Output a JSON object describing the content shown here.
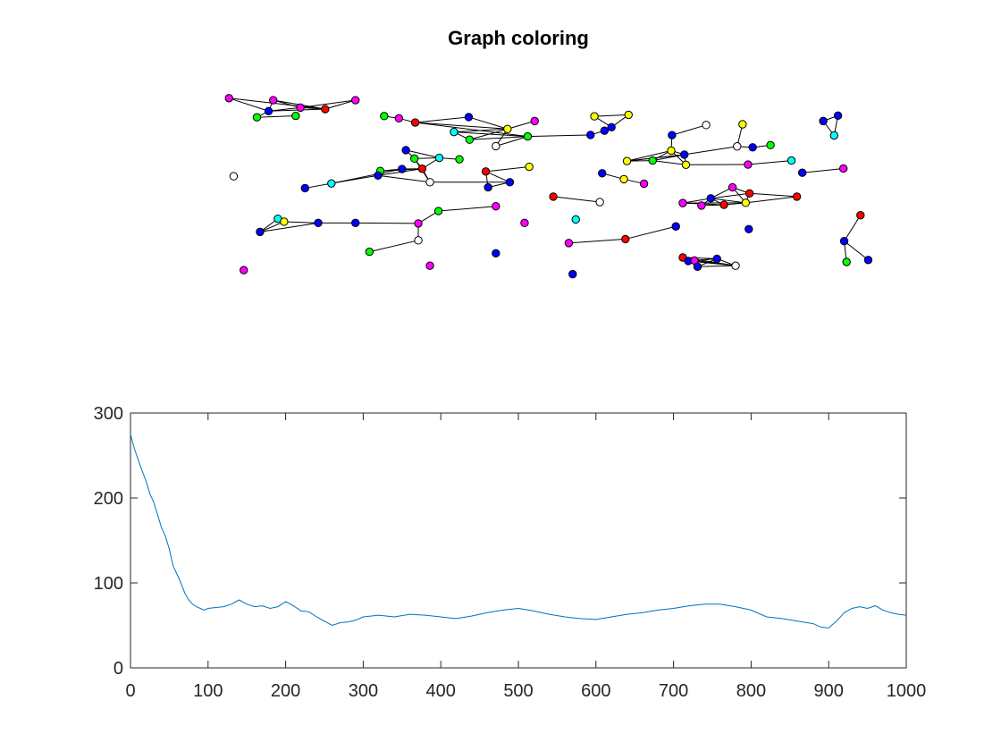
{
  "graph": {
    "title": "Graph coloring",
    "nodes": [
      [
        "n1",
        0.178,
        0.812,
        "#0000ff"
      ],
      [
        "n2",
        0.163,
        0.787,
        "#00ff00"
      ],
      [
        "n3",
        0.213,
        0.793,
        "#00ff00"
      ],
      [
        "n4",
        0.127,
        0.864,
        "#ff00ff"
      ],
      [
        "n5",
        0.184,
        0.856,
        "#ff00ff"
      ],
      [
        "n6",
        0.219,
        0.826,
        "#ff00ff"
      ],
      [
        "n7",
        0.251,
        0.82,
        "#ff0000"
      ],
      [
        "n8",
        0.29,
        0.856,
        "#ff00ff"
      ],
      [
        "n9",
        0.327,
        0.792,
        "#00ff00"
      ],
      [
        "n10",
        0.346,
        0.783,
        "#ff00ff"
      ],
      [
        "n11",
        0.367,
        0.766,
        "#ff0000"
      ],
      [
        "n12",
        0.436,
        0.788,
        "#0000ff"
      ],
      [
        "n13",
        0.521,
        0.772,
        "#ff00ff"
      ],
      [
        "n14",
        0.417,
        0.728,
        "#00ffff"
      ],
      [
        "n15",
        0.437,
        0.697,
        "#00ff00"
      ],
      [
        "n16",
        0.486,
        0.74,
        "#ffff00"
      ],
      [
        "n17",
        0.512,
        0.71,
        "#00ff00"
      ],
      [
        "n18",
        0.471,
        0.671,
        "#ffffff"
      ],
      [
        "n19",
        0.598,
        0.791,
        "#ffff00"
      ],
      [
        "n20",
        0.642,
        0.797,
        "#ffff00"
      ],
      [
        "n21",
        0.62,
        0.747,
        "#0000ff"
      ],
      [
        "n22",
        0.611,
        0.733,
        "#0000ff"
      ],
      [
        "n23",
        0.593,
        0.716,
        "#0000ff"
      ],
      [
        "n24",
        0.355,
        0.655,
        "#0000ff"
      ],
      [
        "n25",
        0.366,
        0.621,
        "#00ff00"
      ],
      [
        "n26",
        0.398,
        0.624,
        "#00ffff"
      ],
      [
        "n27",
        0.424,
        0.618,
        "#00ff00"
      ],
      [
        "n28",
        0.35,
        0.579,
        "#0000ff"
      ],
      [
        "n29",
        0.376,
        0.58,
        "#ff0000"
      ],
      [
        "n30",
        0.322,
        0.571,
        "#00ff00"
      ],
      [
        "n31",
        0.319,
        0.553,
        "#0000ff"
      ],
      [
        "n32",
        0.386,
        0.526,
        "#ffffff"
      ],
      [
        "n33",
        0.259,
        0.521,
        "#00ffff"
      ],
      [
        "n34",
        0.225,
        0.502,
        "#0000ff"
      ],
      [
        "n35",
        0.133,
        0.55,
        "#ffffff"
      ],
      [
        "n36",
        0.458,
        0.569,
        "#ff0000"
      ],
      [
        "n37",
        0.514,
        0.588,
        "#ffff00"
      ],
      [
        "n38",
        0.489,
        0.526,
        "#0000ff"
      ],
      [
        "n39",
        0.461,
        0.505,
        "#0000ff"
      ],
      [
        "n40",
        0.698,
        0.715,
        "#0000ff"
      ],
      [
        "n41",
        0.742,
        0.756,
        "#ffffff"
      ],
      [
        "n42",
        0.789,
        0.759,
        "#ffff00"
      ],
      [
        "n43",
        0.782,
        0.67,
        "#ffffff"
      ],
      [
        "n44",
        0.802,
        0.666,
        "#0000ff"
      ],
      [
        "n45",
        0.825,
        0.675,
        "#00ff00"
      ],
      [
        "n46",
        0.697,
        0.653,
        "#ffff00"
      ],
      [
        "n47",
        0.714,
        0.637,
        "#0000ff"
      ],
      [
        "n48",
        0.64,
        0.611,
        "#ffff00"
      ],
      [
        "n49",
        0.673,
        0.613,
        "#00ff00"
      ],
      [
        "n50",
        0.716,
        0.596,
        "#ffff00"
      ],
      [
        "n51",
        0.796,
        0.597,
        "#ff00ff"
      ],
      [
        "n52",
        0.852,
        0.613,
        "#00ffff"
      ],
      [
        "n53",
        0.893,
        0.772,
        "#0000ff"
      ],
      [
        "n54",
        0.912,
        0.794,
        "#0000ff"
      ],
      [
        "n55",
        0.907,
        0.714,
        "#00ffff"
      ],
      [
        "n56",
        0.866,
        0.564,
        "#0000ff"
      ],
      [
        "n57",
        0.919,
        0.581,
        "#ff00ff"
      ],
      [
        "n58",
        0.608,
        0.562,
        "#0000ff"
      ],
      [
        "n59",
        0.636,
        0.538,
        "#ffff00"
      ],
      [
        "n60",
        0.662,
        0.52,
        "#ff00ff"
      ],
      [
        "n61",
        0.545,
        0.468,
        "#ff0000"
      ],
      [
        "n62",
        0.605,
        0.446,
        "#ffffff"
      ],
      [
        "n63",
        0.776,
        0.505,
        "#ff00ff"
      ],
      [
        "n64",
        0.798,
        0.481,
        "#ff0000"
      ],
      [
        "n65",
        0.748,
        0.461,
        "#0000ff"
      ],
      [
        "n66",
        0.859,
        0.468,
        "#ff0000"
      ],
      [
        "n67",
        0.712,
        0.442,
        "#ff00ff"
      ],
      [
        "n68",
        0.736,
        0.432,
        "#ff00ff"
      ],
      [
        "n69",
        0.765,
        0.435,
        "#ff0000"
      ],
      [
        "n70",
        0.793,
        0.443,
        "#ffff00"
      ],
      [
        "n71",
        0.19,
        0.379,
        "#00ffff"
      ],
      [
        "n72",
        0.198,
        0.367,
        "#ffff00"
      ],
      [
        "n73",
        0.167,
        0.326,
        "#0000ff"
      ],
      [
        "n74",
        0.242,
        0.362,
        "#0000ff"
      ],
      [
        "n75",
        0.29,
        0.362,
        "#0000ff"
      ],
      [
        "n76",
        0.371,
        0.36,
        "#ff00ff"
      ],
      [
        "n77",
        0.397,
        0.41,
        "#00ff00"
      ],
      [
        "n78",
        0.471,
        0.429,
        "#ff00ff"
      ],
      [
        "n79",
        0.371,
        0.292,
        "#ffffff"
      ],
      [
        "n80",
        0.308,
        0.246,
        "#00ff00"
      ],
      [
        "n81",
        0.146,
        0.172,
        "#ff00ff"
      ],
      [
        "n82",
        0.386,
        0.19,
        "#ff00ff"
      ],
      [
        "n83",
        0.471,
        0.24,
        "#0000ff"
      ],
      [
        "n84",
        0.508,
        0.362,
        "#ff00ff"
      ],
      [
        "n85",
        0.574,
        0.376,
        "#00ffff"
      ],
      [
        "n86",
        0.565,
        0.281,
        "#ff00ff"
      ],
      [
        "n87",
        0.638,
        0.297,
        "#ff0000"
      ],
      [
        "n88",
        0.703,
        0.348,
        "#0000ff"
      ],
      [
        "n89",
        0.57,
        0.156,
        "#0000ff"
      ],
      [
        "n90",
        0.797,
        0.337,
        "#0000ff"
      ],
      [
        "n91",
        0.941,
        0.393,
        "#ff0000"
      ],
      [
        "n92",
        0.92,
        0.289,
        "#0000ff"
      ],
      [
        "n93",
        0.923,
        0.205,
        "#00ff00"
      ],
      [
        "n94",
        0.951,
        0.213,
        "#0000ff"
      ],
      [
        "n95",
        0.712,
        0.223,
        "#ff0000"
      ],
      [
        "n96",
        0.719,
        0.209,
        "#0000ff"
      ],
      [
        "n97",
        0.727,
        0.211,
        "#ff00ff"
      ],
      [
        "n98",
        0.731,
        0.186,
        "#0000ff"
      ],
      [
        "n99",
        0.756,
        0.218,
        "#0000ff"
      ],
      [
        "n100",
        0.78,
        0.19,
        "#ffffff"
      ]
    ],
    "edges": [
      [
        "n1",
        "n2"
      ],
      [
        "n2",
        "n3"
      ],
      [
        "n1",
        "n4"
      ],
      [
        "n1",
        "n5"
      ],
      [
        "n1",
        "n6"
      ],
      [
        "n1",
        "n7"
      ],
      [
        "n4",
        "n7"
      ],
      [
        "n5",
        "n7"
      ],
      [
        "n6",
        "n7"
      ],
      [
        "n5",
        "n6"
      ],
      [
        "n6",
        "n8"
      ],
      [
        "n7",
        "n8"
      ],
      [
        "n9",
        "n10"
      ],
      [
        "n10",
        "n11"
      ],
      [
        "n11",
        "n12"
      ],
      [
        "n11",
        "n16"
      ],
      [
        "n11",
        "n17"
      ],
      [
        "n12",
        "n16"
      ],
      [
        "n13",
        "n16"
      ],
      [
        "n14",
        "n16"
      ],
      [
        "n14",
        "n17"
      ],
      [
        "n15",
        "n16"
      ],
      [
        "n15",
        "n17"
      ],
      [
        "n16",
        "n18"
      ],
      [
        "n17",
        "n18"
      ],
      [
        "n15",
        "n14"
      ],
      [
        "n17",
        "n23"
      ],
      [
        "n23",
        "n22"
      ],
      [
        "n22",
        "n21"
      ],
      [
        "n21",
        "n20"
      ],
      [
        "n19",
        "n20"
      ],
      [
        "n19",
        "n21"
      ],
      [
        "n24",
        "n25"
      ],
      [
        "n24",
        "n26"
      ],
      [
        "n25",
        "n26"
      ],
      [
        "n26",
        "n27"
      ],
      [
        "n25",
        "n29"
      ],
      [
        "n26",
        "n29"
      ],
      [
        "n25",
        "n32"
      ],
      [
        "n29",
        "n28"
      ],
      [
        "n29",
        "n30"
      ],
      [
        "n29",
        "n31"
      ],
      [
        "n28",
        "n30"
      ],
      [
        "n30",
        "n31"
      ],
      [
        "n31",
        "n32"
      ],
      [
        "n29",
        "n32"
      ],
      [
        "n28",
        "n33"
      ],
      [
        "n31",
        "n33"
      ],
      [
        "n33",
        "n34"
      ],
      [
        "n32",
        "n38"
      ],
      [
        "n36",
        "n38"
      ],
      [
        "n36",
        "n39"
      ],
      [
        "n38",
        "n39"
      ],
      [
        "n36",
        "n37"
      ],
      [
        "n40",
        "n41"
      ],
      [
        "n42",
        "n43"
      ],
      [
        "n43",
        "n44"
      ],
      [
        "n44",
        "n45"
      ],
      [
        "n40",
        "n46"
      ],
      [
        "n46",
        "n47"
      ],
      [
        "n46",
        "n48"
      ],
      [
        "n46",
        "n49"
      ],
      [
        "n46",
        "n50"
      ],
      [
        "n47",
        "n48"
      ],
      [
        "n47",
        "n49"
      ],
      [
        "n47",
        "n50"
      ],
      [
        "n48",
        "n49"
      ],
      [
        "n48",
        "n47"
      ],
      [
        "n49",
        "n50"
      ],
      [
        "n50",
        "n51"
      ],
      [
        "n51",
        "n52"
      ],
      [
        "n47",
        "n43"
      ],
      [
        "n53",
        "n54"
      ],
      [
        "n53",
        "n55"
      ],
      [
        "n54",
        "n55"
      ],
      [
        "n56",
        "n57"
      ],
      [
        "n58",
        "n59"
      ],
      [
        "n59",
        "n60"
      ],
      [
        "n61",
        "n62"
      ],
      [
        "n63",
        "n64"
      ],
      [
        "n63",
        "n65"
      ],
      [
        "n63",
        "n70"
      ],
      [
        "n64",
        "n65"
      ],
      [
        "n64",
        "n66"
      ],
      [
        "n64",
        "n70"
      ],
      [
        "n65",
        "n67"
      ],
      [
        "n65",
        "n68"
      ],
      [
        "n65",
        "n69"
      ],
      [
        "n65",
        "n70"
      ],
      [
        "n66",
        "n70"
      ],
      [
        "n67",
        "n69"
      ],
      [
        "n68",
        "n69"
      ],
      [
        "n69",
        "n70"
      ],
      [
        "n67",
        "n70"
      ],
      [
        "n71",
        "n72"
      ],
      [
        "n71",
        "n73"
      ],
      [
        "n72",
        "n73"
      ],
      [
        "n73",
        "n74"
      ],
      [
        "n72",
        "n74"
      ],
      [
        "n74",
        "n75"
      ],
      [
        "n75",
        "n76"
      ],
      [
        "n76",
        "n77"
      ],
      [
        "n77",
        "n78"
      ],
      [
        "n76",
        "n79"
      ],
      [
        "n79",
        "n80"
      ],
      [
        "n86",
        "n87"
      ],
      [
        "n87",
        "n88"
      ],
      [
        "n91",
        "n92"
      ],
      [
        "n92",
        "n93"
      ],
      [
        "n92",
        "n94"
      ],
      [
        "n95",
        "n96"
      ],
      [
        "n95",
        "n97"
      ],
      [
        "n95",
        "n98"
      ],
      [
        "n95",
        "n99"
      ],
      [
        "n95",
        "n100"
      ],
      [
        "n96",
        "n97"
      ],
      [
        "n96",
        "n98"
      ],
      [
        "n96",
        "n99"
      ],
      [
        "n96",
        "n100"
      ],
      [
        "n97",
        "n98"
      ],
      [
        "n97",
        "n99"
      ],
      [
        "n97",
        "n100"
      ],
      [
        "n98",
        "n99"
      ],
      [
        "n98",
        "n100"
      ],
      [
        "n99",
        "n100"
      ]
    ]
  },
  "chart_data": {
    "type": "line",
    "title": "",
    "xlabel": "",
    "ylabel": "",
    "xlim": [
      0,
      1000
    ],
    "ylim": [
      0,
      300
    ],
    "xticks": [
      0,
      100,
      200,
      300,
      400,
      500,
      600,
      700,
      800,
      900,
      1000
    ],
    "yticks": [
      0,
      100,
      200,
      300
    ],
    "grid": false,
    "series": [
      {
        "color": "#0072bd",
        "x": [
          0,
          5,
          10,
          15,
          20,
          25,
          30,
          35,
          40,
          45,
          50,
          55,
          60,
          65,
          70,
          75,
          80,
          85,
          90,
          95,
          100,
          110,
          120,
          130,
          140,
          150,
          160,
          170,
          180,
          190,
          200,
          210,
          220,
          230,
          240,
          250,
          260,
          270,
          280,
          290,
          300,
          320,
          340,
          360,
          380,
          400,
          420,
          440,
          460,
          480,
          500,
          520,
          540,
          560,
          580,
          600,
          620,
          640,
          660,
          680,
          700,
          720,
          740,
          760,
          780,
          800,
          820,
          840,
          860,
          880,
          890,
          900,
          910,
          920,
          930,
          940,
          950,
          960,
          970,
          980,
          990,
          1000
        ],
        "y": [
          275,
          258,
          245,
          232,
          220,
          205,
          195,
          180,
          165,
          155,
          140,
          120,
          110,
          100,
          88,
          80,
          75,
          72,
          70,
          68,
          70,
          71,
          72,
          75,
          80,
          75,
          72,
          73,
          70,
          72,
          78,
          73,
          67,
          66,
          60,
          55,
          50,
          53,
          54,
          56,
          60,
          62,
          60,
          63,
          62,
          60,
          58,
          61,
          65,
          68,
          70,
          67,
          63,
          60,
          58,
          57,
          60,
          63,
          65,
          68,
          70,
          73,
          75,
          75,
          72,
          68,
          60,
          58,
          55,
          52,
          48,
          47,
          55,
          65,
          70,
          72,
          70,
          73,
          68,
          65,
          63,
          62
        ]
      }
    ]
  }
}
